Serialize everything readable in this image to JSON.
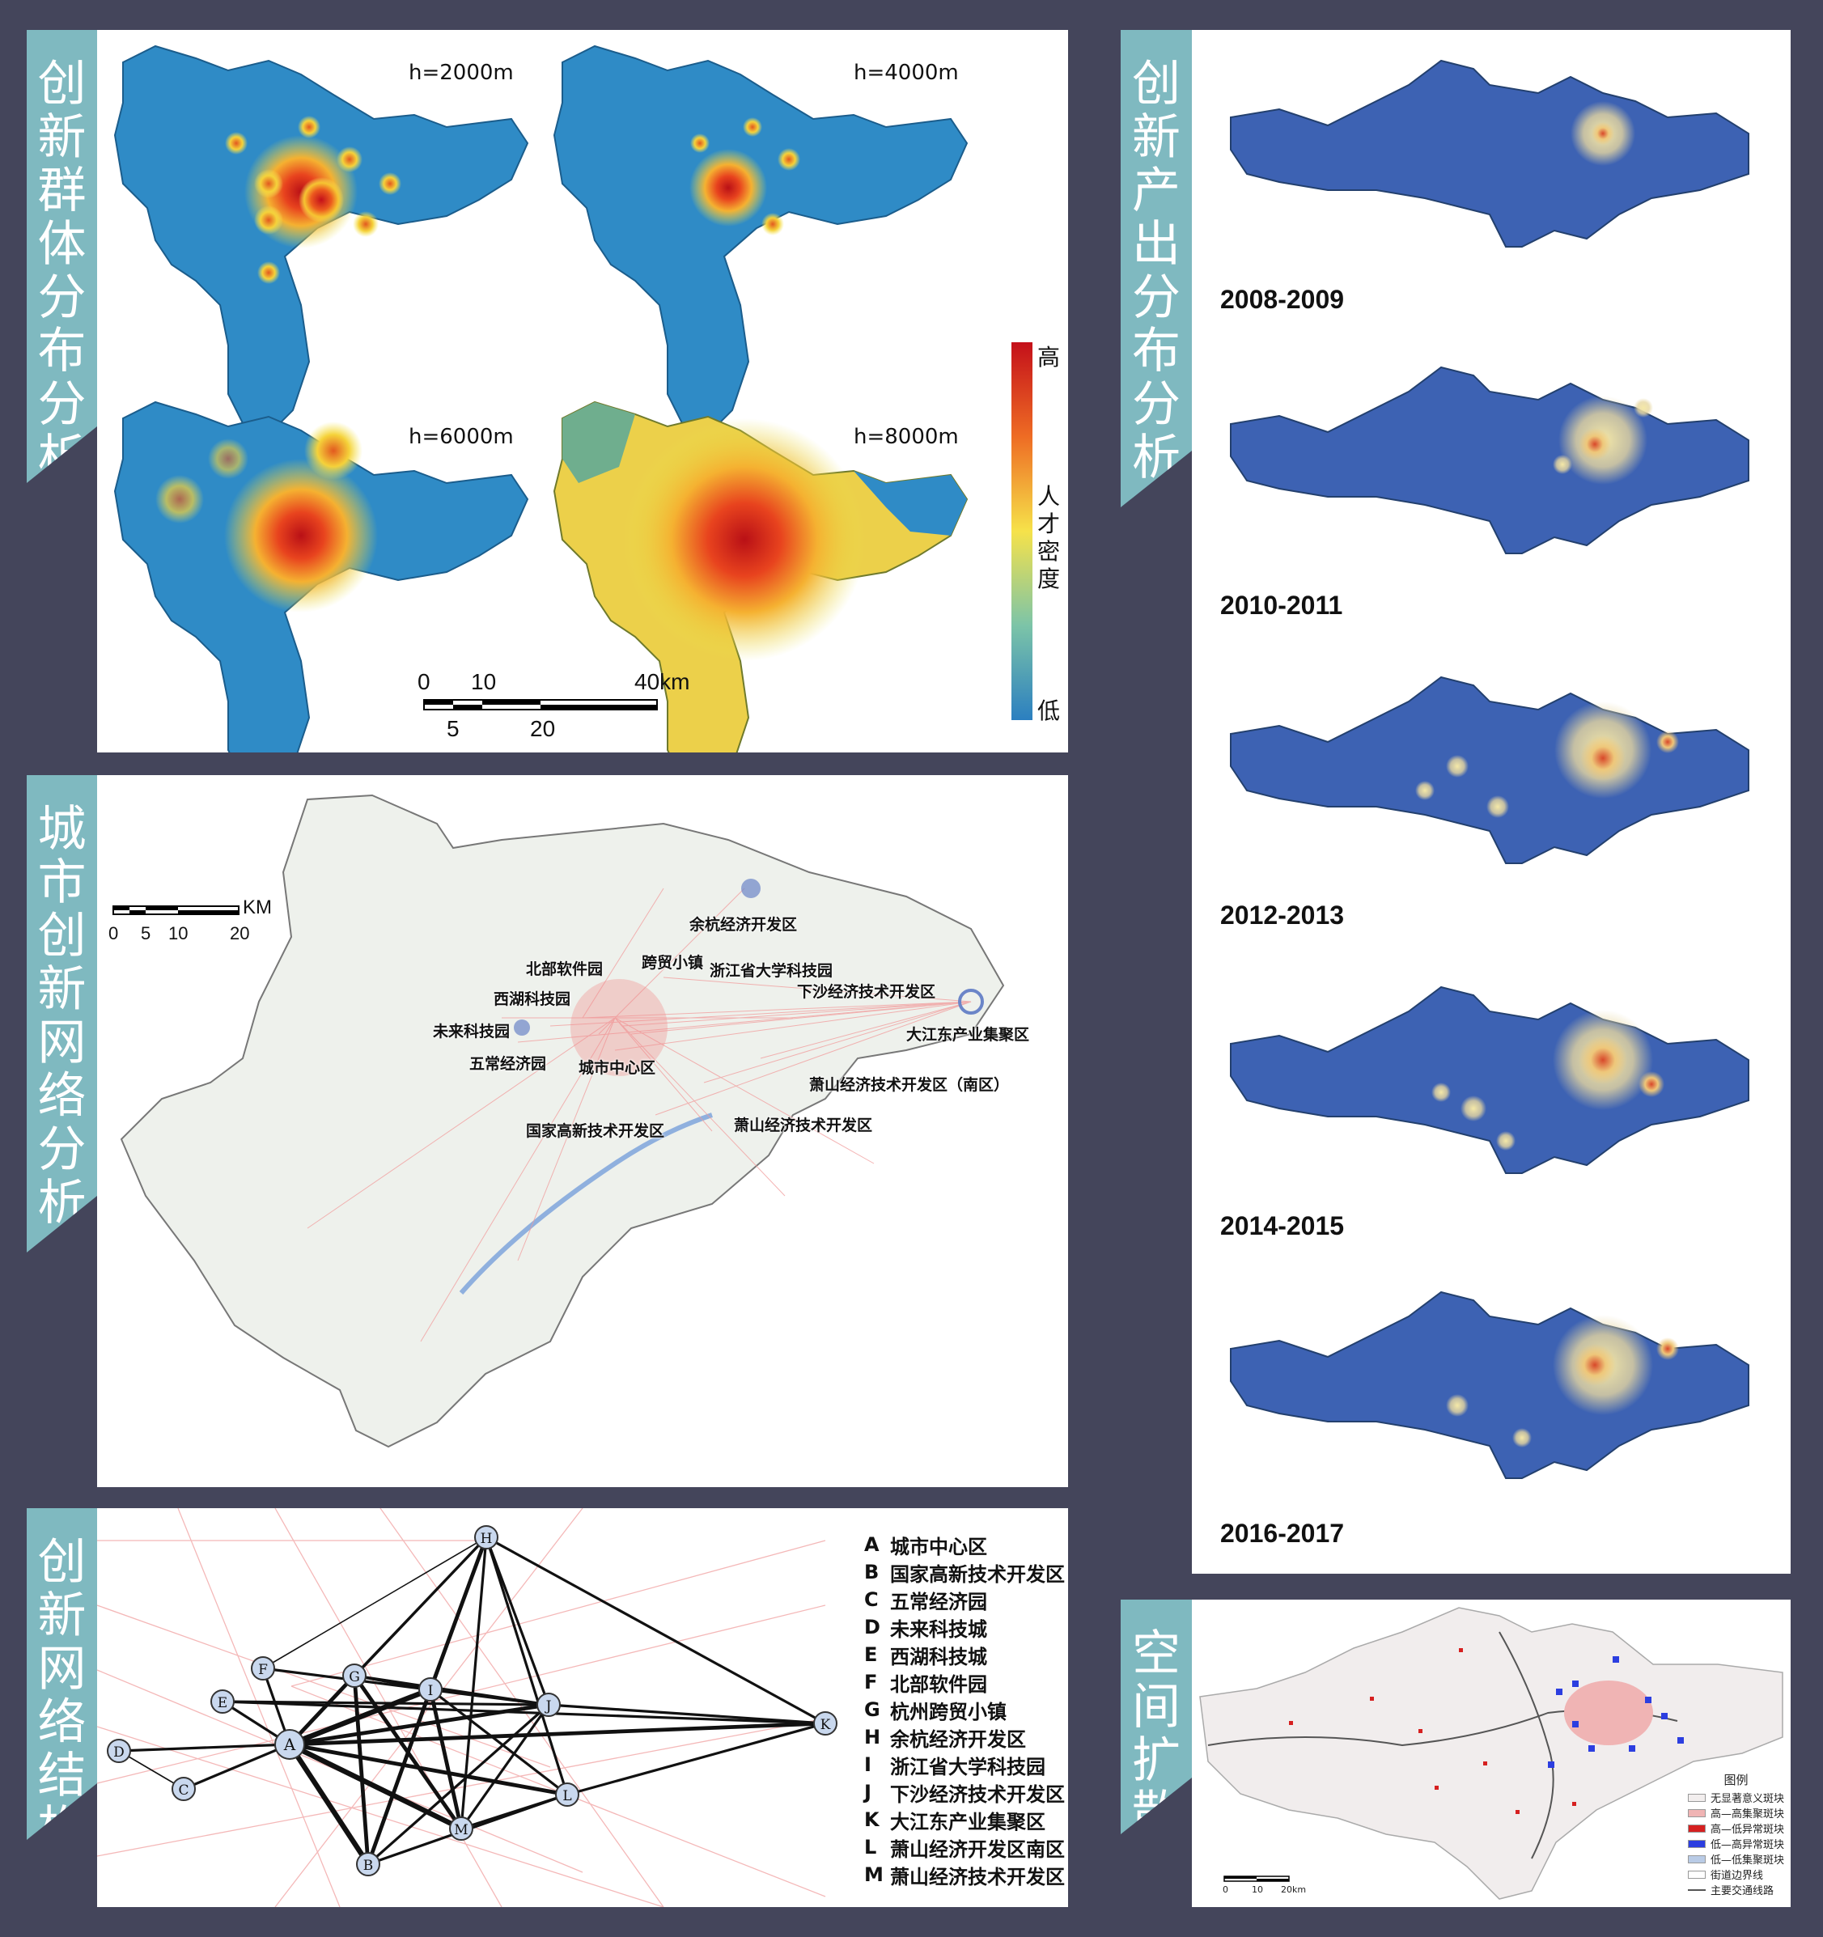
{
  "section_titles": {
    "density": "创新群体分布分析",
    "output": "创新产出分布分析",
    "city_network": "城市创新网络分析",
    "network_structure": "创新网络结构",
    "diffusion": "空间扩散"
  },
  "density_maps": {
    "bandwidths": [
      "h=2000m",
      "h=4000m",
      "h=6000m",
      "h=8000m"
    ],
    "legend": {
      "high": "高",
      "title": "人才密度",
      "low": "低"
    },
    "scale": {
      "top_ticks": [
        "0",
        "10",
        "40km"
      ],
      "bottom_ticks": [
        "5",
        "20"
      ]
    }
  },
  "output_maps": {
    "periods": [
      "2008-2009",
      "2010-2011",
      "2012-2013",
      "2014-2015",
      "2016-2017"
    ]
  },
  "city_network": {
    "scale": {
      "unit": "KM",
      "ticks": [
        "0",
        "5",
        "10",
        "20"
      ]
    },
    "labels": [
      "余杭经济开发区",
      "北部软件园",
      "跨贸小镇",
      "浙江省大学科技园",
      "西湖科技园",
      "下沙经济技术开发区",
      "未来科技园",
      "大江东产业集聚区",
      "五常经济园",
      "城市中心区",
      "萧山经济技术开发区（南区）",
      "国家高新技术开发区",
      "萧山经济技术开发区"
    ]
  },
  "network_structure": {
    "nodes": [
      "A",
      "B",
      "C",
      "D",
      "E",
      "F",
      "G",
      "H",
      "I",
      "J",
      "K",
      "L",
      "M"
    ],
    "legend": [
      {
        "code": "A",
        "name": "城市中心区"
      },
      {
        "code": "B",
        "name": "国家高新技术开发区"
      },
      {
        "code": "C",
        "name": "五常经济园"
      },
      {
        "code": "D",
        "name": "未来科技城"
      },
      {
        "code": "E",
        "name": "西湖科技城"
      },
      {
        "code": "F",
        "name": "北部软件园"
      },
      {
        "code": "G",
        "name": "杭州跨贸小镇"
      },
      {
        "code": "H",
        "name": "余杭经济开发区"
      },
      {
        "code": "I",
        "name": "浙江省大学科技园"
      },
      {
        "code": "J",
        "name": "下沙经济技术开发区"
      },
      {
        "code": "K",
        "name": "大江东产业集聚区"
      },
      {
        "code": "L",
        "name": "萧山经济开发区南区"
      },
      {
        "code": "M",
        "name": "萧山经济技术开发区"
      }
    ]
  },
  "diffusion": {
    "legend_title": "图例",
    "legend_items": [
      {
        "label": "无显著意义斑块",
        "color": "#f2eeee"
      },
      {
        "label": "高—高集聚斑块",
        "color": "#f0b4b4"
      },
      {
        "label": "高—低异常斑块",
        "color": "#d62020"
      },
      {
        "label": "低—高异常斑块",
        "color": "#2c3ee0"
      },
      {
        "label": "低—低集聚斑块",
        "color": "#b9cbe6"
      },
      {
        "label": "街道边界线",
        "color": "#ffffff"
      },
      {
        "label": "主要交通线路",
        "color": "#555555"
      }
    ],
    "scale": {
      "ticks": [
        "0",
        "10",
        "20km"
      ]
    }
  }
}
